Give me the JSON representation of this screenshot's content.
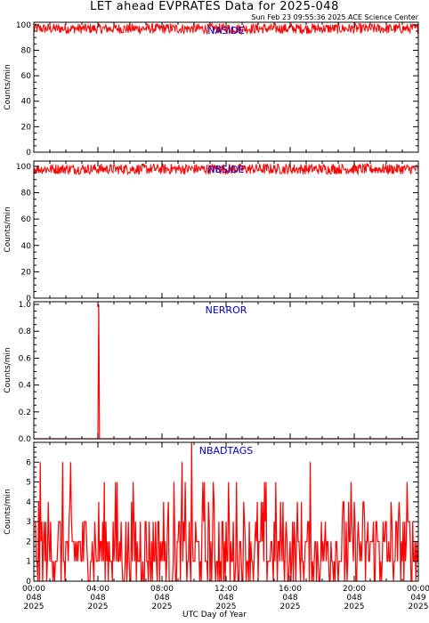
{
  "title": "LET ahead EVPRATES Data for 2025-048",
  "stamp": "Sun Feb 23 09:55:36 2025 ACE Science Center",
  "xaxis_title": "UTC Day of Year",
  "colors": {
    "data": "#ff0000",
    "label": "#0000cc",
    "axis": "#000000"
  },
  "chart_data": [
    {
      "type": "line",
      "title": "NASIDE",
      "ylabel": "Counts/min",
      "ylim": [
        0,
        102
      ],
      "yticks": [
        0,
        20,
        40,
        60,
        80,
        100
      ],
      "ytick_labels": [
        "0",
        "20",
        "40",
        "60",
        "80",
        "100"
      ],
      "pattern": "noise",
      "level": 97,
      "spread": 4
    },
    {
      "type": "line",
      "title": "NBSIDE",
      "ylabel": "Counts/min",
      "ylim": [
        0,
        104
      ],
      "yticks": [
        0,
        20,
        40,
        60,
        80,
        100
      ],
      "ytick_labels": [
        "0",
        "20",
        "40",
        "60",
        "80",
        "100"
      ],
      "pattern": "noise",
      "level": 98,
      "spread": 4
    },
    {
      "type": "line",
      "title": "NERROR",
      "ylabel": "Counts/min",
      "ylim": [
        0,
        1.02
      ],
      "yticks": [
        0,
        0.2,
        0.4,
        0.6,
        0.8,
        1.0
      ],
      "ytick_labels": [
        "0.0",
        "0.2",
        "0.4",
        "0.6",
        "0.8",
        "1.0"
      ],
      "pattern": "spike",
      "baseline": 0,
      "spike": {
        "x": 4.05,
        "y": 1
      }
    },
    {
      "type": "line",
      "title": "NBADTAGS",
      "ylabel": "Counts/min",
      "ylim": [
        0,
        7
      ],
      "yticks": [
        0,
        1,
        2,
        3,
        4,
        5,
        6
      ],
      "ytick_labels": [
        "0",
        "1",
        "2",
        "3",
        "4",
        "5",
        "6"
      ],
      "pattern": "counts",
      "range": [
        0,
        7
      ]
    }
  ],
  "xaxis": {
    "range": [
      0,
      24
    ],
    "ticks": [
      0,
      4,
      8,
      12,
      16,
      20,
      24
    ],
    "labels": [
      [
        "00:00",
        "048",
        "2025"
      ],
      [
        "04:00",
        "048",
        "2025"
      ],
      [
        "08:00",
        "048",
        "2025"
      ],
      [
        "12:00",
        "048",
        "2025"
      ],
      [
        "16:00",
        "048",
        "2025"
      ],
      [
        "20:00",
        "048",
        "2025"
      ],
      [
        "00:00",
        "049",
        "2025"
      ]
    ]
  }
}
